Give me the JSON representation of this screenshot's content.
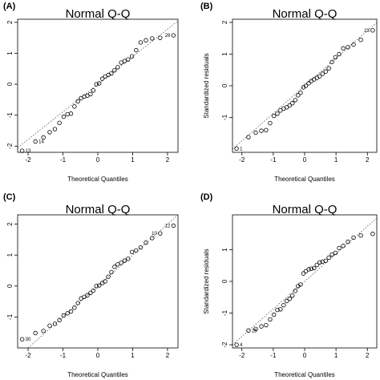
{
  "chart_data": [
    {
      "type": "scatter",
      "panel": "(A)",
      "title": "Normal Q-Q",
      "xlabel": "Theoretical Quantiles",
      "ylabel": "",
      "xlim": [
        -2.3,
        2.3
      ],
      "ylim": [
        -2.2,
        2.1
      ],
      "xticks": [
        "-2",
        "-1",
        "0",
        "1",
        "2"
      ],
      "yticks": [
        "-2",
        "-1",
        "0",
        "1",
        "2"
      ],
      "xtick_values": [
        -2,
        -1,
        0,
        1,
        2
      ],
      "ytick_values": [
        -2,
        -1,
        0,
        1,
        2
      ],
      "ref_line": [
        [
          -2.3,
          -2.05
        ],
        [
          2.3,
          2.05
        ]
      ],
      "x": [
        -2.17,
        -1.79,
        -1.56,
        -1.38,
        -1.23,
        -1.1,
        -0.98,
        -0.87,
        -0.77,
        -0.67,
        -0.57,
        -0.48,
        -0.39,
        -0.3,
        -0.21,
        -0.13,
        -0.04,
        0.04,
        0.13,
        0.21,
        0.3,
        0.39,
        0.48,
        0.57,
        0.67,
        0.77,
        0.87,
        0.98,
        1.1,
        1.23,
        1.38,
        1.56,
        1.79,
        2.17
      ],
      "y": [
        -2.15,
        -1.85,
        -1.72,
        -1.55,
        -1.45,
        -1.25,
        -1.05,
        -0.97,
        -0.95,
        -0.72,
        -0.55,
        -0.45,
        -0.4,
        -0.37,
        -0.32,
        -0.2,
        0.0,
        0.03,
        0.18,
        0.25,
        0.3,
        0.35,
        0.45,
        0.55,
        0.7,
        0.75,
        0.8,
        0.9,
        1.1,
        1.35,
        1.42,
        1.48,
        1.5,
        1.58
      ],
      "point_labels": [
        {
          "index": 0,
          "text": "13"
        },
        {
          "index": 1,
          "text": "14"
        },
        {
          "index": 33,
          "text": "28"
        }
      ]
    },
    {
      "type": "scatter",
      "panel": "(B)",
      "title": "Normal Q-Q",
      "xlabel": "Theoretical Quantiles",
      "ylabel": "Standardized residuals",
      "xlim": [
        -2.3,
        2.3
      ],
      "ylim": [
        -2.1,
        2.1
      ],
      "xticks": [
        "-2",
        "-1",
        "0",
        "1",
        "2"
      ],
      "yticks": [
        "-1",
        "0",
        "1",
        "2"
      ],
      "xtick_values": [
        -2,
        -1,
        0,
        1,
        2
      ],
      "ytick_values": [
        -1,
        0,
        1,
        2
      ],
      "ref_line": [
        [
          -2.3,
          -2.0
        ],
        [
          2.3,
          2.0
        ]
      ],
      "x": [
        -2.17,
        -1.79,
        -1.56,
        -1.38,
        -1.23,
        -1.1,
        -0.98,
        -0.87,
        -0.77,
        -0.67,
        -0.57,
        -0.48,
        -0.39,
        -0.3,
        -0.21,
        -0.13,
        -0.04,
        0.04,
        0.13,
        0.21,
        0.3,
        0.39,
        0.48,
        0.57,
        0.67,
        0.77,
        0.87,
        0.98,
        1.1,
        1.23,
        1.38,
        1.56,
        1.79,
        2.17
      ],
      "y": [
        -1.98,
        -1.62,
        -1.48,
        -1.42,
        -1.4,
        -1.18,
        -0.95,
        -0.88,
        -0.78,
        -0.72,
        -0.68,
        -0.62,
        -0.55,
        -0.45,
        -0.3,
        -0.22,
        -0.05,
        0.0,
        0.08,
        0.15,
        0.2,
        0.25,
        0.3,
        0.38,
        0.45,
        0.55,
        0.75,
        0.9,
        1.0,
        1.18,
        1.22,
        1.3,
        1.45,
        1.75
      ],
      "point_labels": [
        {
          "index": 0,
          "text": "1"
        },
        {
          "index": 33,
          "text": "23"
        }
      ]
    },
    {
      "type": "scatter",
      "panel": "(C)",
      "title": "Normal Q-Q",
      "xlabel": "Theoretical Quantiles",
      "ylabel": "",
      "xlim": [
        -2.3,
        2.3
      ],
      "ylim": [
        -2.0,
        2.3
      ],
      "xticks": [
        "-2",
        "-1",
        "0",
        "1",
        "2"
      ],
      "yticks": [
        "-1",
        "0",
        "1",
        "2"
      ],
      "xtick_values": [
        -2,
        -1,
        0,
        1,
        2
      ],
      "ytick_values": [
        -1,
        0,
        1,
        2
      ],
      "ref_line": [
        [
          -2.3,
          -2.3
        ],
        [
          2.3,
          2.3
        ]
      ],
      "x": [
        -2.17,
        -1.79,
        -1.56,
        -1.38,
        -1.23,
        -1.1,
        -0.98,
        -0.87,
        -0.77,
        -0.67,
        -0.57,
        -0.48,
        -0.39,
        -0.3,
        -0.21,
        -0.13,
        -0.04,
        0.04,
        0.13,
        0.21,
        0.3,
        0.39,
        0.48,
        0.57,
        0.67,
        0.77,
        0.87,
        0.98,
        1.1,
        1.23,
        1.38,
        1.56,
        1.79,
        2.17
      ],
      "y": [
        -1.72,
        -1.52,
        -1.45,
        -1.28,
        -1.22,
        -1.1,
        -0.95,
        -0.88,
        -0.82,
        -0.7,
        -0.55,
        -0.4,
        -0.35,
        -0.3,
        -0.22,
        -0.15,
        0.0,
        0.02,
        0.1,
        0.15,
        0.3,
        0.45,
        0.62,
        0.7,
        0.75,
        0.82,
        0.88,
        1.1,
        1.15,
        1.25,
        1.4,
        1.55,
        1.7,
        1.95
      ],
      "point_labels": [
        {
          "index": 0,
          "text": "30"
        },
        {
          "index": 32,
          "text": "10"
        },
        {
          "index": 33,
          "text": "12"
        }
      ]
    },
    {
      "type": "scatter",
      "panel": "(D)",
      "title": "Normal Q-Q",
      "xlabel": "Theoretical Quantiles",
      "ylabel": "Standardized residuals",
      "xlim": [
        -2.3,
        2.3
      ],
      "ylim": [
        -2.1,
        2.1
      ],
      "xticks": [
        "-2",
        "-1",
        "0",
        "1",
        "2"
      ],
      "yticks": [
        "-2",
        "-1",
        "0",
        "1"
      ],
      "xtick_values": [
        -2,
        -1,
        0,
        1,
        2
      ],
      "ytick_values": [
        -2,
        -1,
        0,
        1
      ],
      "ref_line": [
        [
          -2.3,
          -2.0
        ],
        [
          2.3,
          2.0
        ]
      ],
      "x": [
        -2.17,
        -1.79,
        -1.56,
        -1.38,
        -1.23,
        -1.1,
        -0.98,
        -0.87,
        -0.77,
        -0.67,
        -0.57,
        -0.48,
        -0.39,
        -0.3,
        -0.21,
        -0.13,
        -0.04,
        0.04,
        0.13,
        0.21,
        0.3,
        0.39,
        0.48,
        0.57,
        0.67,
        0.77,
        0.87,
        0.98,
        1.1,
        1.23,
        1.38,
        1.56,
        1.79,
        2.17
      ],
      "y": [
        -2.0,
        -1.55,
        -1.5,
        -1.42,
        -1.38,
        -1.2,
        -1.05,
        -0.9,
        -0.88,
        -0.75,
        -0.62,
        -0.55,
        -0.45,
        -0.3,
        -0.15,
        -0.1,
        0.25,
        0.32,
        0.38,
        0.4,
        0.42,
        0.52,
        0.6,
        0.62,
        0.65,
        0.75,
        0.85,
        0.9,
        1.05,
        1.12,
        1.25,
        1.38,
        1.45,
        1.5
      ],
      "point_labels": [
        {
          "index": 0,
          "text": "4"
        },
        {
          "index": 1,
          "text": "25"
        }
      ]
    }
  ]
}
